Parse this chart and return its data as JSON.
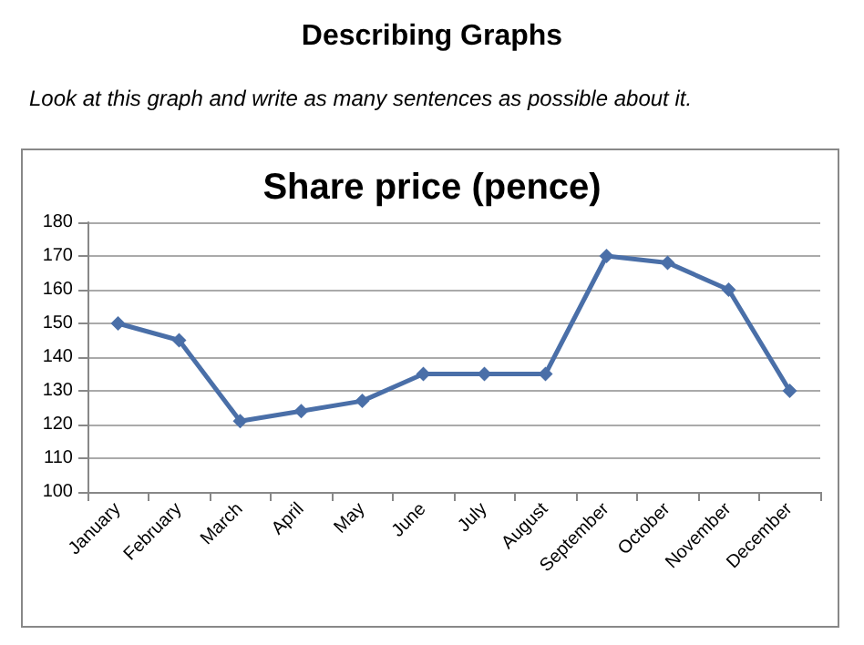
{
  "chart_data": {
    "type": "line",
    "title": "Share price (pence)",
    "annotations": [
      "Describing Graphs",
      "Look at this graph and write as many sentences as possible about it."
    ],
    "categories": [
      "January",
      "February",
      "March",
      "April",
      "May",
      "June",
      "July",
      "August",
      "September",
      "October",
      "November",
      "December"
    ],
    "series": [
      {
        "color": "#4a6fa8",
        "values": [
          150,
          145,
          121,
          124,
          127,
          135,
          135,
          135,
          170,
          168,
          160,
          130
        ]
      }
    ],
    "ylim": [
      100,
      180
    ],
    "yticks": [
      100,
      110,
      120,
      130,
      140,
      150,
      160,
      170,
      180
    ],
    "grid": "y",
    "marker": "diamond",
    "line_style": "solid"
  }
}
